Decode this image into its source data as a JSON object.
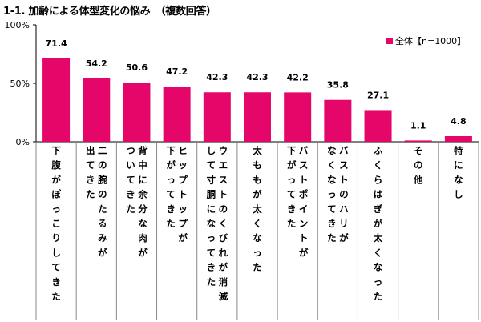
{
  "title": "1-1. 加齢による体型変化の悩み　（複数回答）",
  "colors": {
    "bar": "#e5066a",
    "axis": "#000000",
    "border": "#888888"
  },
  "chart_data": {
    "type": "bar",
    "ylim": [
      0,
      100
    ],
    "yticks": [
      {
        "value": 0,
        "label": "0%"
      },
      {
        "value": 50,
        "label": "50%"
      },
      {
        "value": 100,
        "label": "100%"
      }
    ],
    "legend": {
      "position": "top-right"
    },
    "series": [
      {
        "name": "全体【n=1000】",
        "values": [
          71.4,
          54.2,
          50.6,
          47.2,
          42.3,
          42.3,
          42.2,
          35.8,
          27.1,
          1.1,
          4.8
        ]
      }
    ],
    "value_labels": [
      "71.4",
      "54.2",
      "50.6",
      "47.2",
      "42.3",
      "42.3",
      "42.2",
      "35.8",
      "27.1",
      "1.1",
      "4.8"
    ],
    "categories": [
      [
        "下腹がぽっこりしてきた"
      ],
      [
        "二の腕のたるみが",
        "出てきた"
      ],
      [
        "背中に余分な肉が",
        "ついてきた"
      ],
      [
        "ヒップトップが",
        "下がってきた"
      ],
      [
        "ウエストのくびれが消滅",
        "して寸胴になってきた"
      ],
      [
        "太ももが太くなった"
      ],
      [
        "バストポイントが",
        "下がってきた"
      ],
      [
        "バストのハリが",
        "なくなってきた"
      ],
      [
        "ふくらはぎが太くなった"
      ],
      [
        "その他"
      ],
      [
        "特になし"
      ]
    ]
  }
}
